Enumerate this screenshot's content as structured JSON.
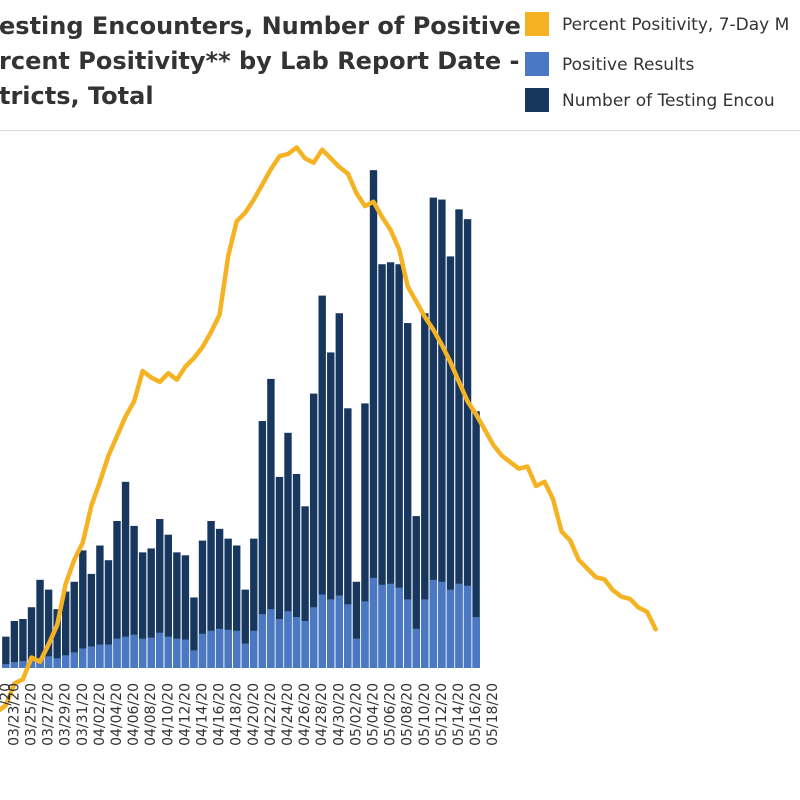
{
  "chart_data": {
    "type": "bar+line",
    "title_lines": [
      "esting Encounters, Number of Positive",
      "rcent Positivity** by Lab Report Date -",
      "tricts, Total"
    ],
    "legend": [
      {
        "label": "Percent Positivity, 7-Day M",
        "color": "#f5b324",
        "kind": "line"
      },
      {
        "label": "Positive Results",
        "color": "#4a78c2",
        "kind": "bar"
      },
      {
        "label": "Number of Testing Encou",
        "color": "#17375e",
        "kind": "bar"
      }
    ],
    "colors": {
      "tests": "#17375e",
      "positives": "#4a78c2",
      "percent_line": "#f5b324"
    },
    "x_tick_labels": [
      "03/23/20",
      "03/25/20",
      "03/27/20",
      "03/29/20",
      "03/31/20",
      "04/02/20",
      "04/04/20",
      "04/06/20",
      "04/08/20",
      "04/10/20",
      "04/12/20",
      "04/14/20",
      "04/16/20",
      "04/18/20",
      "04/20/20",
      "04/22/20",
      "04/24/20",
      "04/26/20",
      "04/28/20",
      "04/30/20",
      "05/02/20",
      "05/04/20",
      "05/06/20",
      "05/08/20",
      "05/10/20",
      "05/12/20",
      "05/14/20",
      "05/16/20",
      "05/18/20"
    ],
    "x_tick_start_date": "03/22/20",
    "x_tick_every_n_days": 2,
    "bars": {
      "first_date": "03/22/20",
      "testing_encounters": [
        32,
        48,
        50,
        62,
        90,
        80,
        60,
        78,
        88,
        120,
        96,
        125,
        110,
        150,
        190,
        145,
        118,
        122,
        152,
        136,
        118,
        115,
        72,
        130,
        150,
        142,
        132,
        125,
        80,
        132,
        252,
        295,
        195,
        240,
        198,
        165,
        280,
        380,
        322,
        362,
        265,
        88,
        270,
        508,
        412,
        414,
        412,
        352,
        155,
        362,
        480,
        478,
        420,
        468,
        458,
        262
      ],
      "positive_results": [
        4,
        6,
        7,
        8,
        10,
        12,
        10,
        13,
        16,
        20,
        22,
        24,
        24,
        30,
        32,
        34,
        30,
        31,
        36,
        32,
        30,
        29,
        18,
        35,
        38,
        40,
        39,
        38,
        25,
        38,
        55,
        60,
        50,
        58,
        52,
        48,
        62,
        75,
        70,
        74,
        65,
        30,
        68,
        92,
        85,
        86,
        82,
        70,
        40,
        70,
        90,
        88,
        80,
        86,
        84,
        52
      ]
    },
    "line": {
      "name": "Percent Positivity, 7-Day M",
      "first_date": "03/21/20",
      "values": [
        13.7,
        14.0,
        15.0,
        15.2,
        16.2,
        16.0,
        16.8,
        17.7,
        19.6,
        20.7,
        21.5,
        23.2,
        24.3,
        25.5,
        26.4,
        27.3,
        28.0,
        29.4,
        29.1,
        28.9,
        29.3,
        29.0,
        29.6,
        30.0,
        30.5,
        31.2,
        32.0,
        34.7,
        36.3,
        36.7,
        37.3,
        38.0,
        38.7,
        39.3,
        39.4,
        39.7,
        39.2,
        39.0,
        39.6,
        39.2,
        38.8,
        38.5,
        37.6,
        37.0,
        37.2,
        36.5,
        35.9,
        35.0,
        33.3,
        32.6,
        31.9,
        31.3,
        30.6,
        29.8,
        28.9,
        28.0,
        27.4,
        26.7,
        26.0,
        25.5,
        25.2,
        24.9,
        25.0,
        24.1,
        24.3,
        23.5,
        22.0,
        21.6,
        20.7,
        20.3,
        19.9,
        19.8,
        19.3,
        19.0,
        18.9,
        18.5,
        18.3,
        17.5
      ],
      "range": [
        0,
        40
      ]
    },
    "bars_range": [
      0,
      520
    ],
    "grid": false,
    "legend_position": "top-right"
  }
}
